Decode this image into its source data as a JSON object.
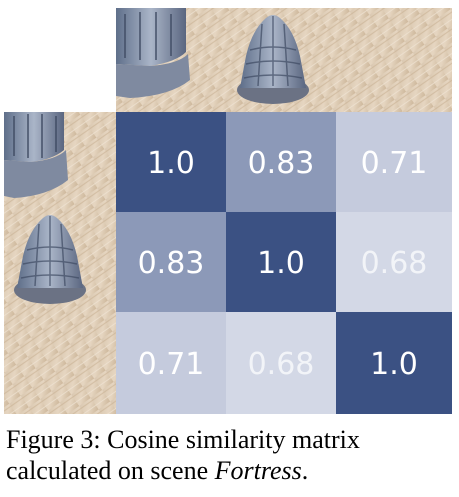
{
  "figure": {
    "caption": {
      "label": "Figure 3:",
      "text_before": "Cosine similarity matrix calculated on scene",
      "scene": "Fortress",
      "text_after": "."
    },
    "thumbnails": [
      {
        "name": "view-1",
        "icon": "fortress-photo-crop"
      },
      {
        "name": "view-2",
        "icon": "fortress-photo-full"
      },
      {
        "name": "view-3",
        "icon": "wood-table-photo"
      }
    ]
  },
  "chart_data": {
    "type": "heatmap",
    "title": "",
    "rows": [
      "",
      "",
      ""
    ],
    "cols": [
      "",
      "",
      ""
    ],
    "values": [
      [
        1.0,
        0.83,
        0.71
      ],
      [
        0.83,
        1.0,
        0.68
      ],
      [
        0.71,
        0.68,
        1.0
      ]
    ],
    "labels": [
      [
        "1.0",
        "0.83",
        "0.71"
      ],
      [
        "0.83",
        "1.0",
        "0.68"
      ],
      [
        "0.71",
        "0.68",
        "1.0"
      ]
    ],
    "colors": {
      "high": "#3b5183",
      "low": "#d3d8e6",
      "text_dark_bg": "#ffffff",
      "text_light_bg": "#f2f4f8"
    }
  }
}
